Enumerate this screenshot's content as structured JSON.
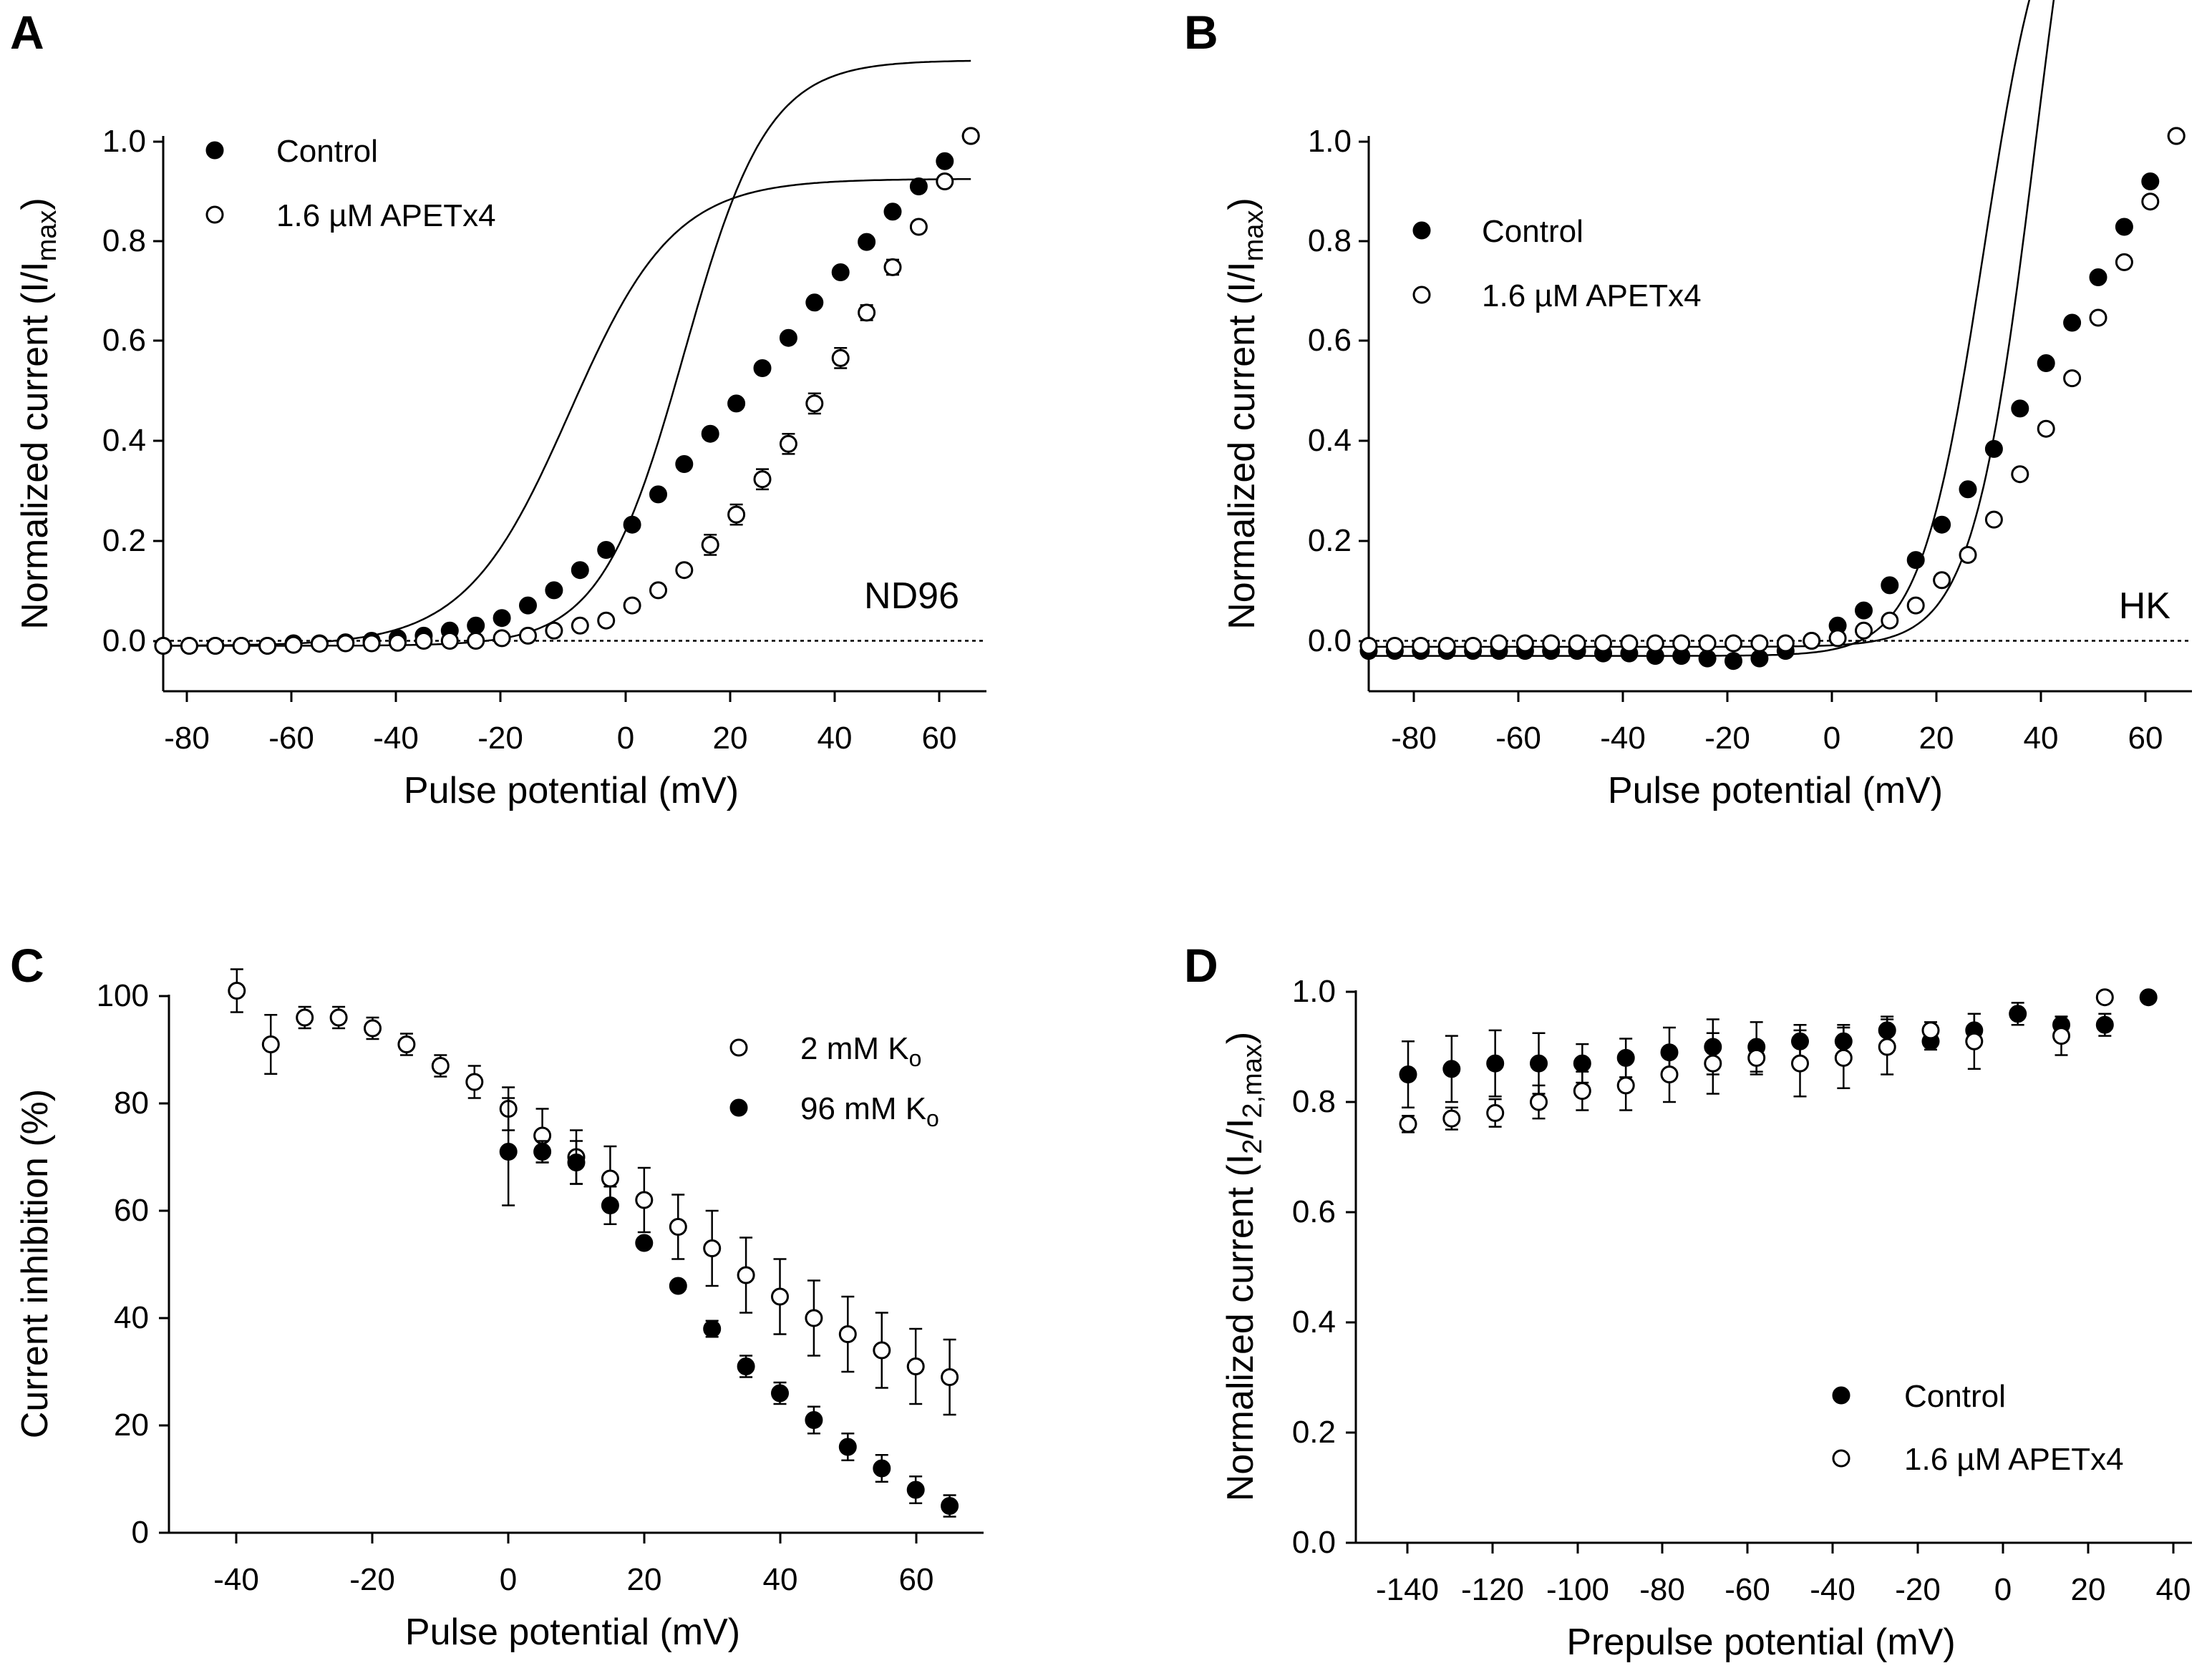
{
  "chart_data": [
    {
      "panel": "A",
      "type": "scatter",
      "xlabel": "Pulse potential (mV)",
      "ylabel_main": "Normalized current (I/I",
      "ylabel_sub": "max",
      "ylabel_tail": ")",
      "xlim": [
        -90,
        68
      ],
      "ylim": [
        -0.1,
        1.0
      ],
      "xticks": [
        -80,
        -60,
        -40,
        -20,
        0,
        20,
        40,
        60
      ],
      "xtick_labels": [
        "-80",
        "-60",
        "-40",
        "-20",
        "0",
        "20",
        "40",
        "60"
      ],
      "yticks": [
        0.0,
        0.2,
        0.4,
        0.6,
        0.8,
        1.0
      ],
      "ytick_labels": [
        "0.0",
        "0.2",
        "0.4",
        "0.6",
        "0.8",
        "1.0"
      ],
      "zero_line": true,
      "annotation": "ND96",
      "legend": [
        {
          "label": "Control",
          "marker": "filled"
        },
        {
          "label": "1.6 µM APETx4",
          "marker": "open"
        }
      ],
      "series": [
        {
          "name": "Control",
          "marker": "filled",
          "x": [
            -90,
            -85,
            -80,
            -75,
            -70,
            -65,
            -60,
            -55,
            -50,
            -45,
            -40,
            -35,
            -30,
            -25,
            -20,
            -15,
            -10,
            -5,
            0,
            5,
            10,
            15,
            20,
            25,
            30,
            35,
            40,
            45,
            50,
            55,
            60,
            65
          ],
          "y": [
            -0.01,
            -0.01,
            -0.01,
            -0.01,
            -0.01,
            -0.005,
            -0.005,
            -0.003,
            0.0,
            0.005,
            0.01,
            0.02,
            0.03,
            0.045,
            0.07,
            0.1,
            0.14,
            0.18,
            0.23,
            0.29,
            0.35,
            0.41,
            0.47,
            0.54,
            0.6,
            0.67,
            0.73,
            0.79,
            0.85,
            0.9,
            0.95,
            1.0
          ],
          "err": []
        },
        {
          "name": "1.6 µM APETx4",
          "marker": "open",
          "x": [
            -90,
            -85,
            -80,
            -75,
            -70,
            -65,
            -60,
            -55,
            -50,
            -45,
            -40,
            -35,
            -30,
            -25,
            -20,
            -15,
            -10,
            -5,
            0,
            5,
            10,
            15,
            20,
            25,
            30,
            35,
            40,
            45,
            50,
            55,
            60,
            65
          ],
          "y": [
            -0.01,
            -0.01,
            -0.01,
            -0.01,
            -0.01,
            -0.008,
            -0.006,
            -0.005,
            -0.005,
            -0.004,
            0.0,
            0.0,
            0.0,
            0.005,
            0.01,
            0.02,
            0.03,
            0.04,
            0.07,
            0.1,
            0.14,
            0.19,
            0.25,
            0.32,
            0.39,
            0.47,
            0.56,
            0.65,
            0.74,
            0.82,
            0.91,
            1.0
          ],
          "err": [
            0,
            0,
            0,
            0,
            0,
            0,
            0,
            0,
            0,
            0,
            0,
            0,
            0,
            0,
            0,
            0,
            0,
            0,
            0,
            0,
            0,
            0.02,
            0.02,
            0.02,
            0.02,
            0.02,
            0.02,
            0.015,
            0.015,
            0.01,
            0.01,
            0
          ]
        }
      ],
      "fits": [
        {
          "name": "Control fit",
          "V": -12,
          "k": 10,
          "A": 0.925,
          "c": -0.01
        },
        {
          "name": "APETx4 fit",
          "V": 10,
          "k": 8,
          "A": 1.16,
          "c": -0.01
        }
      ]
    },
    {
      "panel": "B",
      "type": "scatter",
      "xlabel": "Pulse potential (mV)",
      "ylabel_main": "Normalized current (I/I",
      "ylabel_sub": "max",
      "ylabel_tail": ")",
      "xlim": [
        -90,
        68
      ],
      "ylim": [
        -0.1,
        1.0
      ],
      "xticks": [
        -80,
        -60,
        -40,
        -20,
        0,
        20,
        40,
        60
      ],
      "xtick_labels": [
        "-80",
        "-60",
        "-40",
        "-20",
        "0",
        "20",
        "40",
        "60"
      ],
      "yticks": [
        0.0,
        0.2,
        0.4,
        0.6,
        0.8,
        1.0
      ],
      "ytick_labels": [
        "0.0",
        "0.2",
        "0.4",
        "0.6",
        "0.8",
        "1.0"
      ],
      "zero_line": true,
      "annotation": "HK",
      "legend": [
        {
          "label": "Control",
          "marker": "filled"
        },
        {
          "label": "1.6 µM APETx4",
          "marker": "open"
        }
      ],
      "series": [
        {
          "name": "Control",
          "marker": "filled",
          "x": [
            -90,
            -85,
            -80,
            -75,
            -70,
            -65,
            -60,
            -55,
            -50,
            -45,
            -40,
            -35,
            -30,
            -25,
            -20,
            -15,
            -10,
            -5,
            0,
            5,
            10,
            15,
            20,
            25,
            30,
            35,
            40,
            45,
            50,
            55,
            60,
            65
          ],
          "y": [
            -0.02,
            -0.02,
            -0.02,
            -0.02,
            -0.02,
            -0.02,
            -0.02,
            -0.02,
            -0.02,
            -0.025,
            -0.025,
            -0.03,
            -0.03,
            -0.035,
            -0.04,
            -0.035,
            -0.02,
            0.0,
            0.03,
            0.06,
            0.11,
            0.16,
            0.23,
            0.3,
            0.38,
            0.46,
            0.55,
            0.63,
            0.72,
            0.82,
            0.91,
            1.0
          ],
          "err": []
        },
        {
          "name": "1.6 µM APETx4",
          "marker": "open",
          "x": [
            -90,
            -85,
            -80,
            -75,
            -70,
            -65,
            -60,
            -55,
            -50,
            -45,
            -40,
            -35,
            -30,
            -25,
            -20,
            -15,
            -10,
            -5,
            0,
            5,
            10,
            15,
            20,
            25,
            30,
            35,
            40,
            45,
            50,
            55,
            60,
            65
          ],
          "y": [
            -0.01,
            -0.01,
            -0.01,
            -0.01,
            -0.01,
            -0.005,
            -0.005,
            -0.005,
            -0.005,
            -0.005,
            -0.005,
            -0.005,
            -0.005,
            -0.005,
            -0.005,
            -0.005,
            -0.005,
            0.0,
            0.005,
            0.02,
            0.04,
            0.07,
            0.12,
            0.17,
            0.24,
            0.33,
            0.42,
            0.52,
            0.64,
            0.75,
            0.87,
            1.0
          ],
          "err": []
        }
      ],
      "fits": [
        {
          "name": "Control fit",
          "V": 28,
          "k": 6,
          "A": 1.6,
          "c": -0.03
        },
        {
          "name": "APETx4 fit",
          "V": 38,
          "k": 6,
          "A": 2.0,
          "c": -0.012
        }
      ]
    },
    {
      "panel": "C",
      "type": "scatter",
      "xlabel": "Pulse potential (mV)",
      "ylabel_main": "Current inhibition (%)",
      "ylabel_sub": "",
      "ylabel_tail": "",
      "xlim": [
        -50,
        70
      ],
      "ylim": [
        0,
        100
      ],
      "xticks": [
        -40,
        -20,
        0,
        20,
        40,
        60
      ],
      "xtick_labels": [
        "-40",
        "-20",
        "0",
        "20",
        "40",
        "60"
      ],
      "yticks": [
        0,
        20,
        40,
        60,
        80,
        100
      ],
      "ytick_labels": [
        "0",
        "20",
        "40",
        "60",
        "80",
        "100"
      ],
      "zero_line": false,
      "annotation": "",
      "legend": [
        {
          "label": "2 mM K",
          "sub": "o",
          "marker": "open"
        },
        {
          "label": "96 mM K",
          "sub": "o",
          "marker": "filled"
        }
      ],
      "series": [
        {
          "name": "2 mM Ko",
          "marker": "open",
          "x": [
            -40,
            -35,
            -30,
            -25,
            -20,
            -15,
            -10,
            -5,
            0,
            5,
            10,
            15,
            20,
            25,
            30,
            35,
            40,
            45,
            50,
            55,
            60,
            65
          ],
          "y": [
            101,
            91,
            96,
            96,
            94,
            91,
            87,
            84,
            79,
            74,
            70,
            66,
            62,
            57,
            53,
            48,
            44,
            40,
            37,
            34,
            31,
            29
          ],
          "err": [
            4,
            5.5,
            2,
            2,
            2,
            2,
            2,
            3,
            4,
            5,
            5,
            6,
            6,
            6,
            7,
            7,
            7,
            7,
            7,
            7,
            7,
            7
          ]
        },
        {
          "name": "96 mM Ko",
          "marker": "filled",
          "x": [
            0,
            5,
            10,
            15,
            20,
            25,
            30,
            35,
            40,
            45,
            50,
            55,
            60,
            65
          ],
          "y": [
            71,
            71,
            69,
            61,
            54,
            46,
            38,
            31,
            26,
            21,
            16,
            12,
            8,
            5
          ],
          "err": [
            10,
            2,
            4,
            3.5,
            1,
            0.5,
            1.5,
            2,
            2,
            2.5,
            2.5,
            2.5,
            2.5,
            2
          ]
        }
      ],
      "fits": []
    },
    {
      "panel": "D",
      "type": "scatter",
      "xlabel": "Prepulse potential (mV)",
      "ylabel_main": "Normalized current (I",
      "ylabel_sub": "2",
      "ylabel_mid": "/I",
      "ylabel_sub2": "2,max",
      "ylabel_tail": ")",
      "xlim": [
        -152,
        40
      ],
      "ylim": [
        0,
        1.0
      ],
      "xticks": [
        -140,
        -120,
        -100,
        -80,
        -60,
        -40,
        -20,
        0,
        20,
        40
      ],
      "xtick_labels": [
        "-140",
        "-120",
        "-100",
        "-80",
        "-60",
        "-40",
        "-20",
        "0",
        "20",
        "40"
      ],
      "yticks": [
        0.0,
        0.2,
        0.4,
        0.6,
        0.8,
        1.0
      ],
      "ytick_labels": [
        "0.0",
        "0.2",
        "0.4",
        "0.6",
        "0.8",
        "1.0"
      ],
      "zero_line": false,
      "annotation": "",
      "legend": [
        {
          "label": "Control",
          "marker": "filled"
        },
        {
          "label": "1.6 µM APETx4",
          "marker": "open"
        }
      ],
      "series": [
        {
          "name": "Control",
          "marker": "filled",
          "x": [
            -140,
            -130,
            -120,
            -110,
            -100,
            -90,
            -80,
            -70,
            -60,
            -50,
            -40,
            -30,
            -20,
            -10,
            0,
            10,
            20,
            30
          ],
          "y": [
            0.85,
            0.86,
            0.87,
            0.87,
            0.87,
            0.88,
            0.89,
            0.9,
            0.9,
            0.91,
            0.91,
            0.93,
            0.91,
            0.93,
            0.96,
            0.94,
            0.94,
            0.99
          ],
          "err": [
            0.06,
            0.06,
            0.06,
            0.055,
            0.035,
            0.035,
            0.045,
            0.05,
            0.045,
            0.03,
            0.03,
            0.025,
            0.015,
            0.03,
            0.02,
            0.015,
            0.02,
            0
          ]
        },
        {
          "name": "1.6 µM APETx4",
          "marker": "open",
          "x": [
            -140,
            -130,
            -120,
            -110,
            -100,
            -90,
            -80,
            -70,
            -60,
            -50,
            -40,
            -30,
            -20,
            -10,
            10,
            20
          ],
          "y": [
            0.76,
            0.77,
            0.78,
            0.8,
            0.82,
            0.83,
            0.85,
            0.87,
            0.88,
            0.87,
            0.88,
            0.9,
            0.93,
            0.91,
            0.92,
            0.99
          ],
          "err": [
            0.015,
            0.02,
            0.025,
            0.03,
            0.035,
            0.045,
            0.05,
            0.055,
            0.03,
            0.06,
            0.055,
            0.05,
            0.015,
            0.05,
            0.035,
            0
          ]
        }
      ],
      "fits": []
    }
  ]
}
